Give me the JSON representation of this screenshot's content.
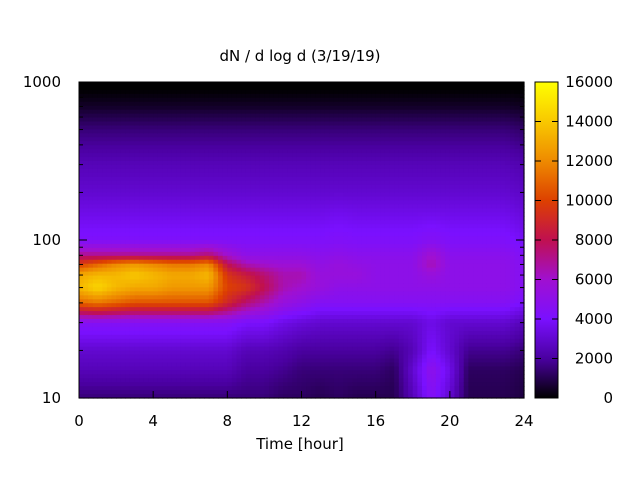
{
  "chart_data": {
    "type": "heatmap",
    "title": "dN / d log d (3/19/19)",
    "xlabel": "Time [hour]",
    "ylabel": "",
    "xlim": [
      0,
      24
    ],
    "ylim": [
      10,
      1000
    ],
    "y_scale": "log",
    "x_ticks": [
      0,
      4,
      8,
      12,
      16,
      20,
      24
    ],
    "y_ticks": [
      10,
      100,
      1000
    ],
    "colorbar": {
      "min": 0,
      "max": 16000,
      "ticks": [
        0,
        2000,
        4000,
        6000,
        8000,
        10000,
        12000,
        14000,
        16000
      ],
      "colormap": "gnuplot",
      "palette": [
        "#000000",
        "#4a00a0",
        "#7a10ff",
        "#a010d0",
        "#c01050",
        "#dd4000",
        "#ee8a00",
        "#f8c800",
        "#ffff00"
      ]
    },
    "time_hours": [
      0,
      1,
      2,
      3,
      4,
      5,
      6,
      7,
      8,
      9,
      10,
      11,
      12,
      13,
      14,
      15,
      16,
      17,
      18,
      19,
      20,
      21,
      22,
      23,
      24
    ],
    "diameter_nm": [
      10,
      15,
      20,
      30,
      40,
      50,
      60,
      70,
      80,
      100,
      150,
      200,
      300,
      500,
      700,
      900
    ],
    "values": [
      [
        1500,
        2500,
        3000,
        4500,
        11000,
        13500,
        13000,
        10000,
        7000,
        4200,
        3500,
        3000,
        2500,
        1500,
        500,
        0
      ],
      [
        1500,
        2500,
        3000,
        4500,
        11500,
        14500,
        13500,
        11000,
        7000,
        4200,
        3500,
        3000,
        2500,
        1500,
        500,
        0
      ],
      [
        1500,
        2500,
        3000,
        4500,
        11000,
        13500,
        13500,
        12000,
        7000,
        4200,
        3500,
        3000,
        2500,
        1500,
        500,
        0
      ],
      [
        1500,
        2500,
        3000,
        4500,
        10500,
        13000,
        14000,
        12500,
        7000,
        4200,
        3500,
        3000,
        2500,
        1500,
        500,
        0
      ],
      [
        1500,
        2500,
        3000,
        4500,
        10500,
        13000,
        13500,
        12000,
        7000,
        4200,
        3500,
        3000,
        2500,
        1500,
        500,
        0
      ],
      [
        1500,
        2500,
        3000,
        4500,
        10500,
        12500,
        13000,
        11500,
        7000,
        4200,
        3500,
        3000,
        2500,
        1500,
        500,
        0
      ],
      [
        1500,
        2500,
        3000,
        4500,
        10500,
        12500,
        13000,
        11500,
        7000,
        4200,
        3500,
        3000,
        2500,
        1500,
        500,
        0
      ],
      [
        1500,
        2500,
        3000,
        4500,
        10500,
        12500,
        13500,
        12000,
        7500,
        4200,
        3500,
        3000,
        2500,
        1500,
        500,
        0
      ],
      [
        1500,
        2500,
        3000,
        4500,
        9000,
        10000,
        9500,
        8000,
        6000,
        4200,
        3500,
        3000,
        2500,
        1500,
        500,
        0
      ],
      [
        1500,
        2000,
        2500,
        4000,
        7500,
        9500,
        8500,
        6500,
        5000,
        4200,
        3500,
        3000,
        2500,
        1500,
        500,
        0
      ],
      [
        1500,
        2000,
        2500,
        4000,
        6500,
        8000,
        7500,
        6000,
        5000,
        4200,
        3500,
        3000,
        2500,
        1500,
        500,
        0
      ],
      [
        1200,
        1800,
        2300,
        3500,
        5500,
        6500,
        6500,
        5800,
        5000,
        4200,
        3500,
        3000,
        2500,
        1500,
        500,
        0
      ],
      [
        1200,
        1500,
        2000,
        3200,
        5000,
        6000,
        6500,
        5800,
        5000,
        4200,
        3500,
        3000,
        2500,
        1500,
        500,
        0
      ],
      [
        1000,
        1500,
        2000,
        3000,
        4500,
        5500,
        5500,
        5200,
        4800,
        4200,
        3500,
        3000,
        2500,
        1500,
        500,
        0
      ],
      [
        1200,
        1500,
        2000,
        3000,
        4500,
        5000,
        5500,
        5500,
        5000,
        4300,
        3600,
        3000,
        2500,
        1500,
        500,
        0
      ],
      [
        1000,
        1500,
        2000,
        3000,
        4500,
        5000,
        5500,
        5200,
        4800,
        4200,
        3500,
        3000,
        2500,
        1500,
        500,
        0
      ],
      [
        1000,
        1500,
        2000,
        3000,
        4500,
        5000,
        5000,
        5000,
        4800,
        4200,
        3500,
        3000,
        2500,
        1500,
        500,
        0
      ],
      [
        1000,
        1200,
        1800,
        3000,
        4500,
        5000,
        5000,
        5000,
        4800,
        4200,
        3500,
        3000,
        2500,
        1500,
        500,
        0
      ],
      [
        2500,
        3000,
        2500,
        3000,
        4500,
        5000,
        5000,
        5000,
        4800,
        4200,
        3500,
        3000,
        2500,
        1500,
        500,
        0
      ],
      [
        4500,
        5000,
        4000,
        3500,
        4500,
        5000,
        5500,
        6500,
        6000,
        4500,
        3500,
        3000,
        2500,
        1500,
        500,
        0
      ],
      [
        3000,
        3500,
        3000,
        3000,
        4500,
        5000,
        5000,
        5000,
        4800,
        4200,
        3500,
        3000,
        2500,
        1500,
        500,
        0
      ],
      [
        1000,
        1200,
        1800,
        3000,
        4500,
        5000,
        5000,
        5000,
        4800,
        4200,
        3500,
        3000,
        2500,
        1500,
        500,
        0
      ],
      [
        1000,
        1200,
        1800,
        3000,
        4500,
        5000,
        5000,
        5000,
        4800,
        4200,
        3500,
        3000,
        2500,
        1500,
        500,
        0
      ],
      [
        1000,
        1200,
        1800,
        3000,
        4500,
        5000,
        5000,
        5000,
        4800,
        4200,
        3500,
        3000,
        2500,
        1500,
        500,
        0
      ],
      [
        800,
        1000,
        1500,
        2500,
        4000,
        4500,
        4500,
        4500,
        4300,
        3800,
        3200,
        2800,
        2300,
        1300,
        400,
        0
      ]
    ]
  }
}
